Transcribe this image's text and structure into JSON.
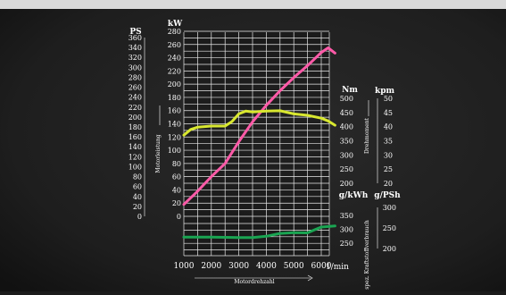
{
  "chart_data": {
    "type": "line",
    "x_label": "Motordrehzahl",
    "x_unit": "1/min",
    "x_ticks": [
      1000,
      2000,
      3000,
      4000,
      5000,
      6000
    ],
    "x_range": [
      1000,
      6500
    ],
    "grid": true,
    "axes": {
      "ps": {
        "unit": "PS",
        "label": "Motorleistung",
        "ticks": [
          0,
          20,
          40,
          60,
          80,
          100,
          120,
          140,
          160,
          180,
          200,
          220,
          240,
          260,
          280,
          300,
          320,
          340,
          360
        ]
      },
      "kw": {
        "unit": "kW",
        "ticks": [
          0,
          20,
          40,
          60,
          80,
          100,
          120,
          140,
          160,
          180,
          200,
          220,
          240,
          260,
          280
        ]
      },
      "nm": {
        "unit": "Nm",
        "label": "Drehmoment",
        "ticks": [
          200,
          250,
          300,
          350,
          400,
          450,
          500
        ]
      },
      "kpm": {
        "unit": "kpm",
        "ticks": [
          20,
          25,
          30,
          35,
          40,
          45,
          50
        ]
      },
      "gkwh": {
        "unit": "g/kWh",
        "ticks": [
          250,
          300,
          350
        ]
      },
      "gpsh": {
        "unit": "g/PSh",
        "ticks": [
          200,
          250,
          300
        ]
      },
      "consumption_label": "spez. Kraftstoffverbrauch"
    },
    "series": [
      {
        "id": "power",
        "color": "#ff5aa8",
        "axis": "kw",
        "x": [
          1000,
          1500,
          2000,
          2500,
          3000,
          3500,
          4000,
          4500,
          5000,
          5500,
          6000,
          6250,
          6500
        ],
        "y": [
          18,
          38,
          60,
          80,
          113,
          143,
          168,
          190,
          210,
          228,
          248,
          255,
          247
        ]
      },
      {
        "id": "torque",
        "color": "#d9e830",
        "axis": "nm",
        "x": [
          1000,
          1250,
          1500,
          2000,
          2500,
          2750,
          3000,
          3250,
          3500,
          4000,
          4500,
          5000,
          5500,
          6000,
          6250,
          6500
        ],
        "y": [
          370,
          390,
          398,
          402,
          402,
          418,
          445,
          455,
          452,
          455,
          456,
          445,
          440,
          430,
          420,
          405
        ]
      },
      {
        "id": "consumption",
        "color": "#1aa552",
        "axis": "gkwh",
        "x": [
          1000,
          1500,
          2000,
          2500,
          3000,
          3500,
          4000,
          4500,
          5000,
          5500,
          5800,
          6000,
          6500
        ],
        "y": [
          272,
          272,
          272,
          271,
          270,
          270,
          275,
          285,
          288,
          287,
          300,
          308,
          312
        ]
      }
    ]
  }
}
